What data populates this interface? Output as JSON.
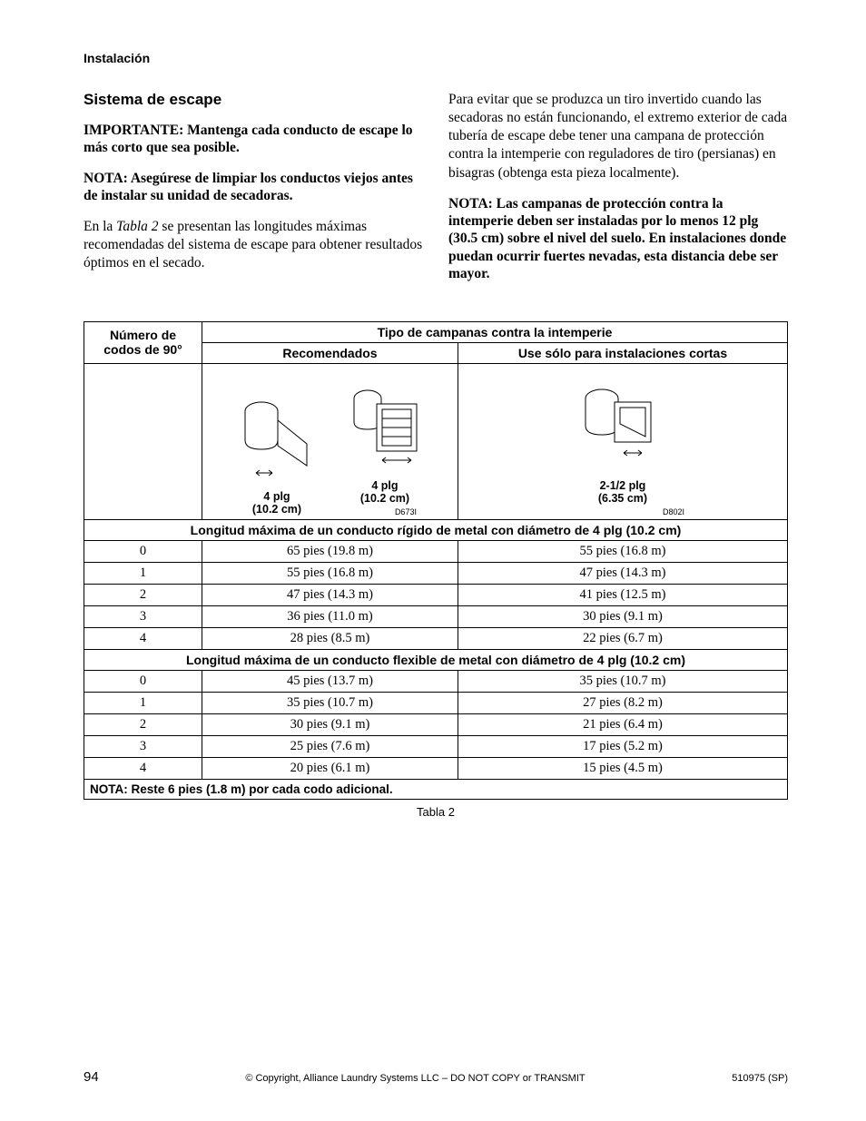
{
  "header": {
    "section": "Instalación"
  },
  "left": {
    "title": "Sistema de escape",
    "imp": "IMPORTANTE: Mantenga cada conducto de escape lo más corto que sea posible.",
    "nota": "NOTA: Asegúrese de limpiar los conductos viejos antes de instalar su unidad de secadoras.",
    "p1_a": "En la ",
    "p1_i": "Tabla 2",
    "p1_b": " se presentan las longitudes máximas recomendadas del sistema de escape para obtener resultados óptimos en el secado."
  },
  "right": {
    "p1": "Para evitar que se produzca un tiro invertido cuando las secadoras no están funcionando, el extremo exterior de cada tubería de escape debe tener una campana de protección contra la intemperie con reguladores de tiro (persianas) en bisagras (obtenga esta pieza localmente).",
    "nota": "NOTA: Las campanas de protección contra la intemperie deben ser instaladas por lo menos 12 plg (30.5 cm) sobre el nivel del suelo. En instalaciones donde puedan ocurrir fuertes nevadas, esta distancia debe ser mayor."
  },
  "table": {
    "col1": "Número de codos de 90°",
    "col2_span": "Tipo de campanas contra la intemperie",
    "col2a": "Recomendados",
    "col2b": "Use sólo para instalaciones cortas",
    "illus": {
      "a_label": "4 plg\n(10.2 cm)",
      "b_label": "4 plg\n(10.2 cm)",
      "code_a": "D673I",
      "c_label": "2-1/2 plg\n(6.35 cm)",
      "code_c": "D802I"
    },
    "sect1": "Longitud máxima de un conducto rígido de metal con diámetro de 4 plg (10.2 cm)",
    "rigid": [
      {
        "n": "0",
        "a": "65 pies (19.8 m)",
        "b": "55 pies (16.8 m)"
      },
      {
        "n": "1",
        "a": "55 pies (16.8 m)",
        "b": "47 pies (14.3 m)"
      },
      {
        "n": "2",
        "a": "47 pies (14.3 m)",
        "b": "41 pies (12.5 m)"
      },
      {
        "n": "3",
        "a": "36 pies (11.0 m)",
        "b": "30 pies (9.1 m)"
      },
      {
        "n": "4",
        "a": "28 pies (8.5 m)",
        "b": "22 pies (6.7 m)"
      }
    ],
    "sect2": "Longitud máxima de un conducto flexible de metal con diámetro de 4 plg (10.2 cm)",
    "flex": [
      {
        "n": "0",
        "a": "45 pies (13.7 m)",
        "b": "35 pies (10.7 m)"
      },
      {
        "n": "1",
        "a": "35 pies (10.7 m)",
        "b": "27 pies (8.2 m)"
      },
      {
        "n": "2",
        "a": "30 pies (9.1 m)",
        "b": "21 pies (6.4 m)"
      },
      {
        "n": "3",
        "a": "25 pies (7.6 m)",
        "b": "17 pies (5.2 m)"
      },
      {
        "n": "4",
        "a": "20 pies (6.1 m)",
        "b": "15 pies (4.5 m)"
      }
    ],
    "note": "NOTA: Reste 6 pies (1.8 m) por cada codo adicional.",
    "caption": "Tabla 2"
  },
  "footer": {
    "page": "94",
    "copy": "© Copyright, Alliance Laundry Systems LLC – DO NOT COPY or TRANSMIT",
    "doc": "510975 (SP)"
  }
}
